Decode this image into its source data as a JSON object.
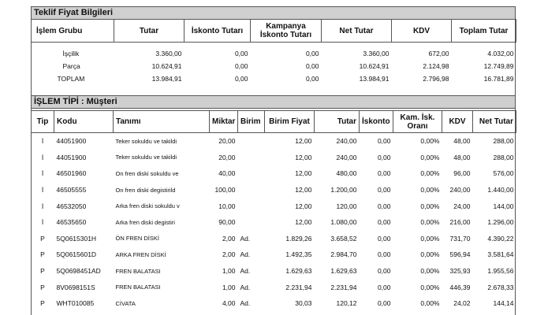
{
  "summary": {
    "title": "Teklif Fiyat Bilgileri",
    "headers": [
      "İşlem Grubu",
      "Tutar",
      "İskonto Tutarı",
      "Kampanya İskonto Tutarı",
      "Net Tutar",
      "KDV",
      "Toplam Tutar"
    ],
    "rows": [
      [
        "İşçilik",
        "3.360,00",
        "0,00",
        "0,00",
        "3.360,00",
        "672,00",
        "4.032,00"
      ],
      [
        "Parça",
        "10.624,91",
        "0,00",
        "0,00",
        "10.624,91",
        "2.124,98",
        "12.749,89"
      ],
      [
        "TOPLAM",
        "13.984,91",
        "0,00",
        "0,00",
        "13.984,91",
        "2.796,98",
        "16.781,89"
      ]
    ]
  },
  "detail": {
    "title": "İŞLEM TİPİ : Müşteri",
    "headers": [
      "Tip",
      "Kodu",
      "Tanımı",
      "Miktar",
      "Birim",
      "Birim Fiyat",
      "Tutar",
      "İskonto",
      "Kam. İsk. Oranı",
      "KDV",
      "Net Tutar"
    ],
    "rows": [
      [
        "İ",
        "44051900",
        "Teker sokuldu ve takildi",
        "20,00",
        "",
        "12,00",
        "240,00",
        "0,00",
        "0,00%",
        "48,00",
        "288,00"
      ],
      [
        "İ",
        "44051900",
        "Teker sokuldu ve takildi",
        "20,00",
        "",
        "12,00",
        "240,00",
        "0,00",
        "0,00%",
        "48,00",
        "288,00"
      ],
      [
        "İ",
        "46501960",
        "On fren diski sokuldu ve",
        "40,00",
        "",
        "12,00",
        "480,00",
        "0,00",
        "0,00%",
        "96,00",
        "576,00"
      ],
      [
        "İ",
        "46505555",
        "On fren diski degistirild",
        "100,00",
        "",
        "12,00",
        "1.200,00",
        "0,00",
        "0,00%",
        "240,00",
        "1.440,00"
      ],
      [
        "İ",
        "46532050",
        "Arka fren diski sokuldu v",
        "10,00",
        "",
        "12,00",
        "120,00",
        "0,00",
        "0,00%",
        "24,00",
        "144,00"
      ],
      [
        "İ",
        "46535650",
        "Arka fren diski degistiri",
        "90,00",
        "",
        "12,00",
        "1.080,00",
        "0,00",
        "0,00%",
        "216,00",
        "1.296,00"
      ],
      [
        "P",
        "5Q0615301H",
        "ÖN FREN DİSKİ",
        "2,00",
        "Ad.",
        "1.829,26",
        "3.658,52",
        "0,00",
        "0,00%",
        "731,70",
        "4.390,22"
      ],
      [
        "P",
        "5Q0615601D",
        "ARKA FREN DİSKİ",
        "2,00",
        "Ad.",
        "1.492,35",
        "2.984,70",
        "0,00",
        "0,00%",
        "596,94",
        "3.581,64"
      ],
      [
        "P",
        "5Q0698451AD",
        "FREN BALATASI",
        "1,00",
        "Ad.",
        "1.629,63",
        "1.629,63",
        "0,00",
        "0,00%",
        "325,93",
        "1.955,56"
      ],
      [
        "P",
        "8V0698151S",
        "FREN BALATASI",
        "1,00",
        "Ad.",
        "2.231,94",
        "2.231,94",
        "0,00",
        "0,00%",
        "446,39",
        "2.678,33"
      ],
      [
        "P",
        "WHT010085",
        "CİVATA",
        "4,00",
        "Ad.",
        "30,03",
        "120,12",
        "0,00",
        "0,00%",
        "24,02",
        "144,14"
      ]
    ]
  }
}
